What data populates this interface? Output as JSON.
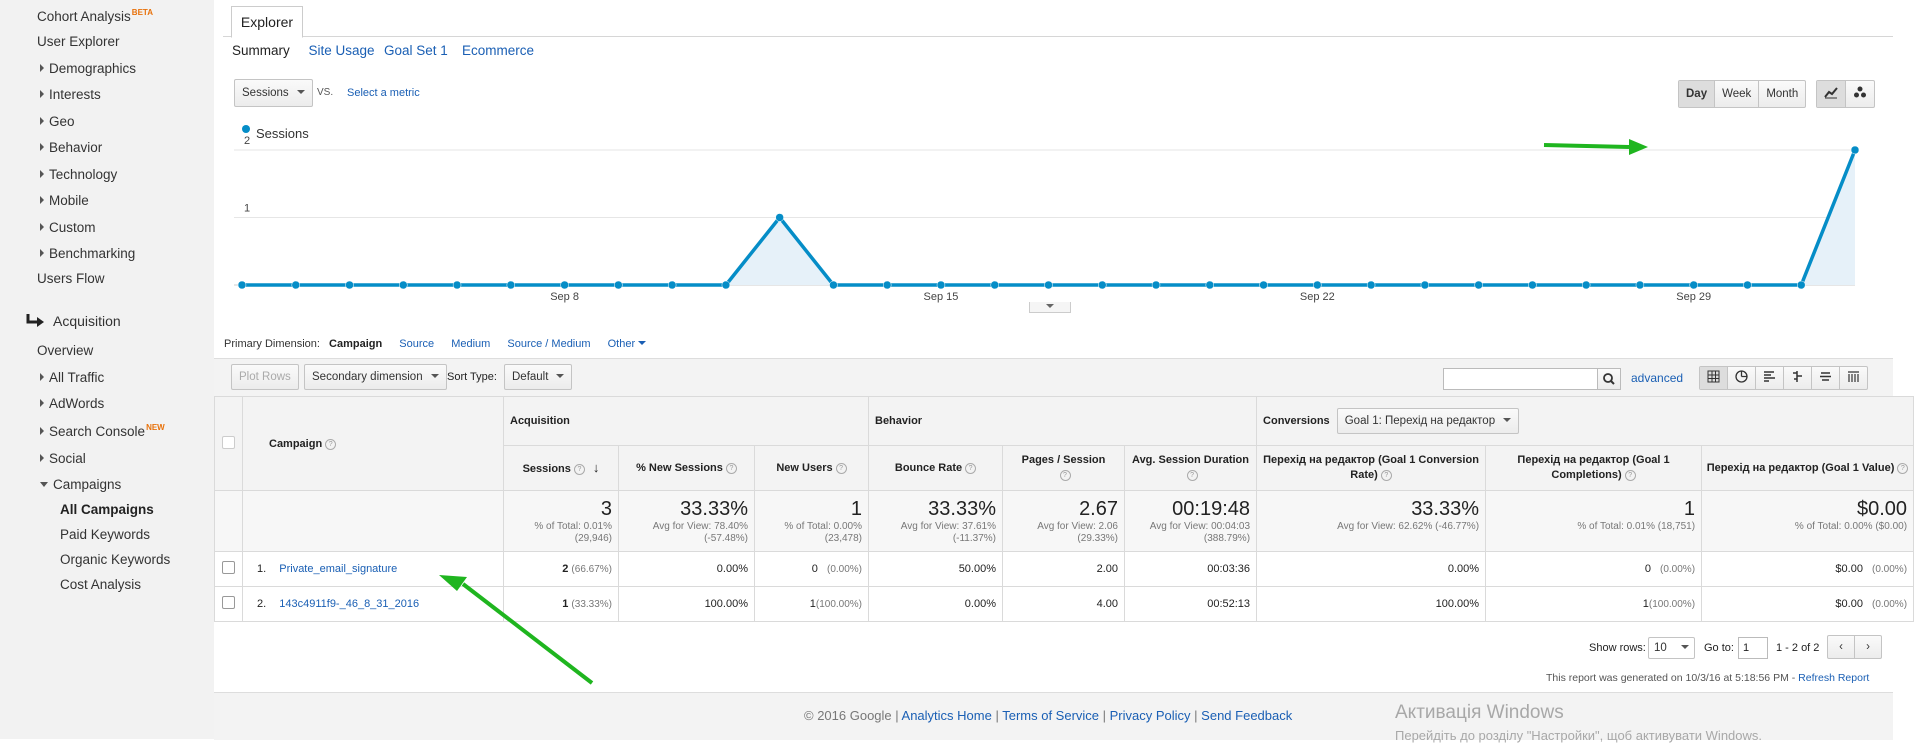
{
  "sidebar": {
    "items": [
      {
        "label": "Cohort Analysis",
        "badge": "BETA"
      },
      {
        "label": "User Explorer"
      },
      {
        "label": "Demographics"
      },
      {
        "label": "Interests"
      },
      {
        "label": "Geo"
      },
      {
        "label": "Behavior"
      },
      {
        "label": "Technology"
      },
      {
        "label": "Mobile"
      },
      {
        "label": "Custom"
      },
      {
        "label": "Benchmarking"
      },
      {
        "label": "Users Flow"
      },
      {
        "label": "Acquisition"
      },
      {
        "label": "Overview"
      },
      {
        "label": "All Traffic"
      },
      {
        "label": "AdWords"
      },
      {
        "label": "Search Console",
        "badge": "NEW"
      },
      {
        "label": "Social"
      },
      {
        "label": "Campaigns"
      },
      {
        "label": "All Campaigns"
      },
      {
        "label": "Paid Keywords"
      },
      {
        "label": "Organic Keywords"
      },
      {
        "label": "Cost Analysis"
      }
    ]
  },
  "explorer": {
    "tab": "Explorer",
    "subtabs": [
      "Summary",
      "Site Usage",
      "Goal Set 1",
      "Ecommerce"
    ]
  },
  "metric_controls": {
    "metric": "Sessions",
    "vs": "VS.",
    "select_metric": "Select a metric",
    "periods": [
      "Day",
      "Week",
      "Month"
    ],
    "active_period": "Day"
  },
  "chart_data": {
    "type": "area",
    "legend": [
      "Sessions"
    ],
    "series": [
      {
        "name": "Sessions",
        "color": "#058dc7",
        "values": [
          0,
          0,
          0,
          0,
          0,
          0,
          0,
          0,
          0,
          0,
          1,
          0,
          0,
          0,
          0,
          0,
          0,
          0,
          0,
          0,
          0,
          0,
          0,
          0,
          0,
          0,
          0,
          0,
          0,
          0,
          2
        ]
      }
    ],
    "x_tick_labels": [
      "Sep 8",
      "Sep 15",
      "Sep 22",
      "Sep 29"
    ],
    "y_tick_labels": [
      "1",
      "2"
    ],
    "ylim": [
      0,
      2
    ],
    "grid": true
  },
  "dimension": {
    "label": "Primary Dimension:",
    "active": "Campaign",
    "options": [
      "Source",
      "Medium",
      "Source / Medium",
      "Other"
    ]
  },
  "toolbar": {
    "plot_rows": "Plot Rows",
    "secondary": "Secondary dimension",
    "sort_label": "Sort Type:",
    "sort_value": "Default",
    "advanced": "advanced"
  },
  "table": {
    "campaign_header": "Campaign",
    "group_acq": "Acquisition",
    "group_beh": "Behavior",
    "group_conv": "Conversions",
    "goal_select": "Goal 1: Перехід на редактор",
    "columns": [
      "Sessions",
      "% New Sessions",
      "New Users",
      "Bounce Rate",
      "Pages / Session",
      "Avg. Session Duration",
      "Перехід на редактор (Goal 1 Conversion Rate)",
      "Перехід на редактор (Goal 1 Completions)",
      "Перехід на редактор (Goal 1 Value)"
    ],
    "totals": [
      {
        "big": "3",
        "small": "% of Total: 0.01% (29,946)"
      },
      {
        "big": "33.33%",
        "small": "Avg for View: 78.40% (-57.48%)"
      },
      {
        "big": "1",
        "small": "% of Total: 0.00% (23,478)"
      },
      {
        "big": "33.33%",
        "small": "Avg for View: 37.61% (-11.37%)"
      },
      {
        "big": "2.67",
        "small": "Avg for View: 2.06 (29.33%)"
      },
      {
        "big": "00:19:48",
        "small": "Avg for View: 00:04:03 (388.79%)"
      },
      {
        "big": "33.33%",
        "small": "Avg for View: 62.62% (-46.77%)"
      },
      {
        "big": "1",
        "small": "% of Total: 0.01% (18,751)"
      },
      {
        "big": "$0.00",
        "small": "% of Total: 0.00% ($0.00)"
      }
    ],
    "rows": [
      {
        "num": "1.",
        "name": "Private_email_signature",
        "sessions": "2",
        "sessions_pct": "(66.67%)",
        "new_sessions": "0.00%",
        "new_users": "0",
        "new_users_pct": "(0.00%)",
        "bounce": "50.00%",
        "pages": "2.00",
        "duration": "00:03:36",
        "conv_rate": "0.00%",
        "completions": "0",
        "completions_pct": "(0.00%)",
        "value": "$0.00",
        "value_pct": "(0.00%)"
      },
      {
        "num": "2.",
        "name": "143c4911f9-_46_8_31_2016",
        "sessions": "1",
        "sessions_pct": "(33.33%)",
        "new_sessions": "100.00%",
        "new_users": "1",
        "new_users_pct": "(100.00%)",
        "bounce": "0.00%",
        "pages": "4.00",
        "duration": "00:52:13",
        "conv_rate": "100.00%",
        "completions": "1",
        "completions_pct": "(100.00%)",
        "value": "$0.00",
        "value_pct": "(0.00%)"
      }
    ]
  },
  "pagination": {
    "show_rows_label": "Show rows:",
    "show_rows_value": "10",
    "goto_label": "Go to:",
    "goto_value": "1",
    "range": "1 - 2 of 2"
  },
  "report_note": "This report was generated on 10/3/16 at 5:18:56 PM - ",
  "refresh": "Refresh Report",
  "footer": {
    "copyright": "© 2016 Google | ",
    "links": [
      "Analytics Home",
      "Terms of Service",
      "Privacy Policy",
      "Send Feedback"
    ]
  },
  "watermark": {
    "title": "Активація Windows",
    "subtitle": "Перейдіть до розділу \"Настройки\", щоб активувати Windows."
  }
}
